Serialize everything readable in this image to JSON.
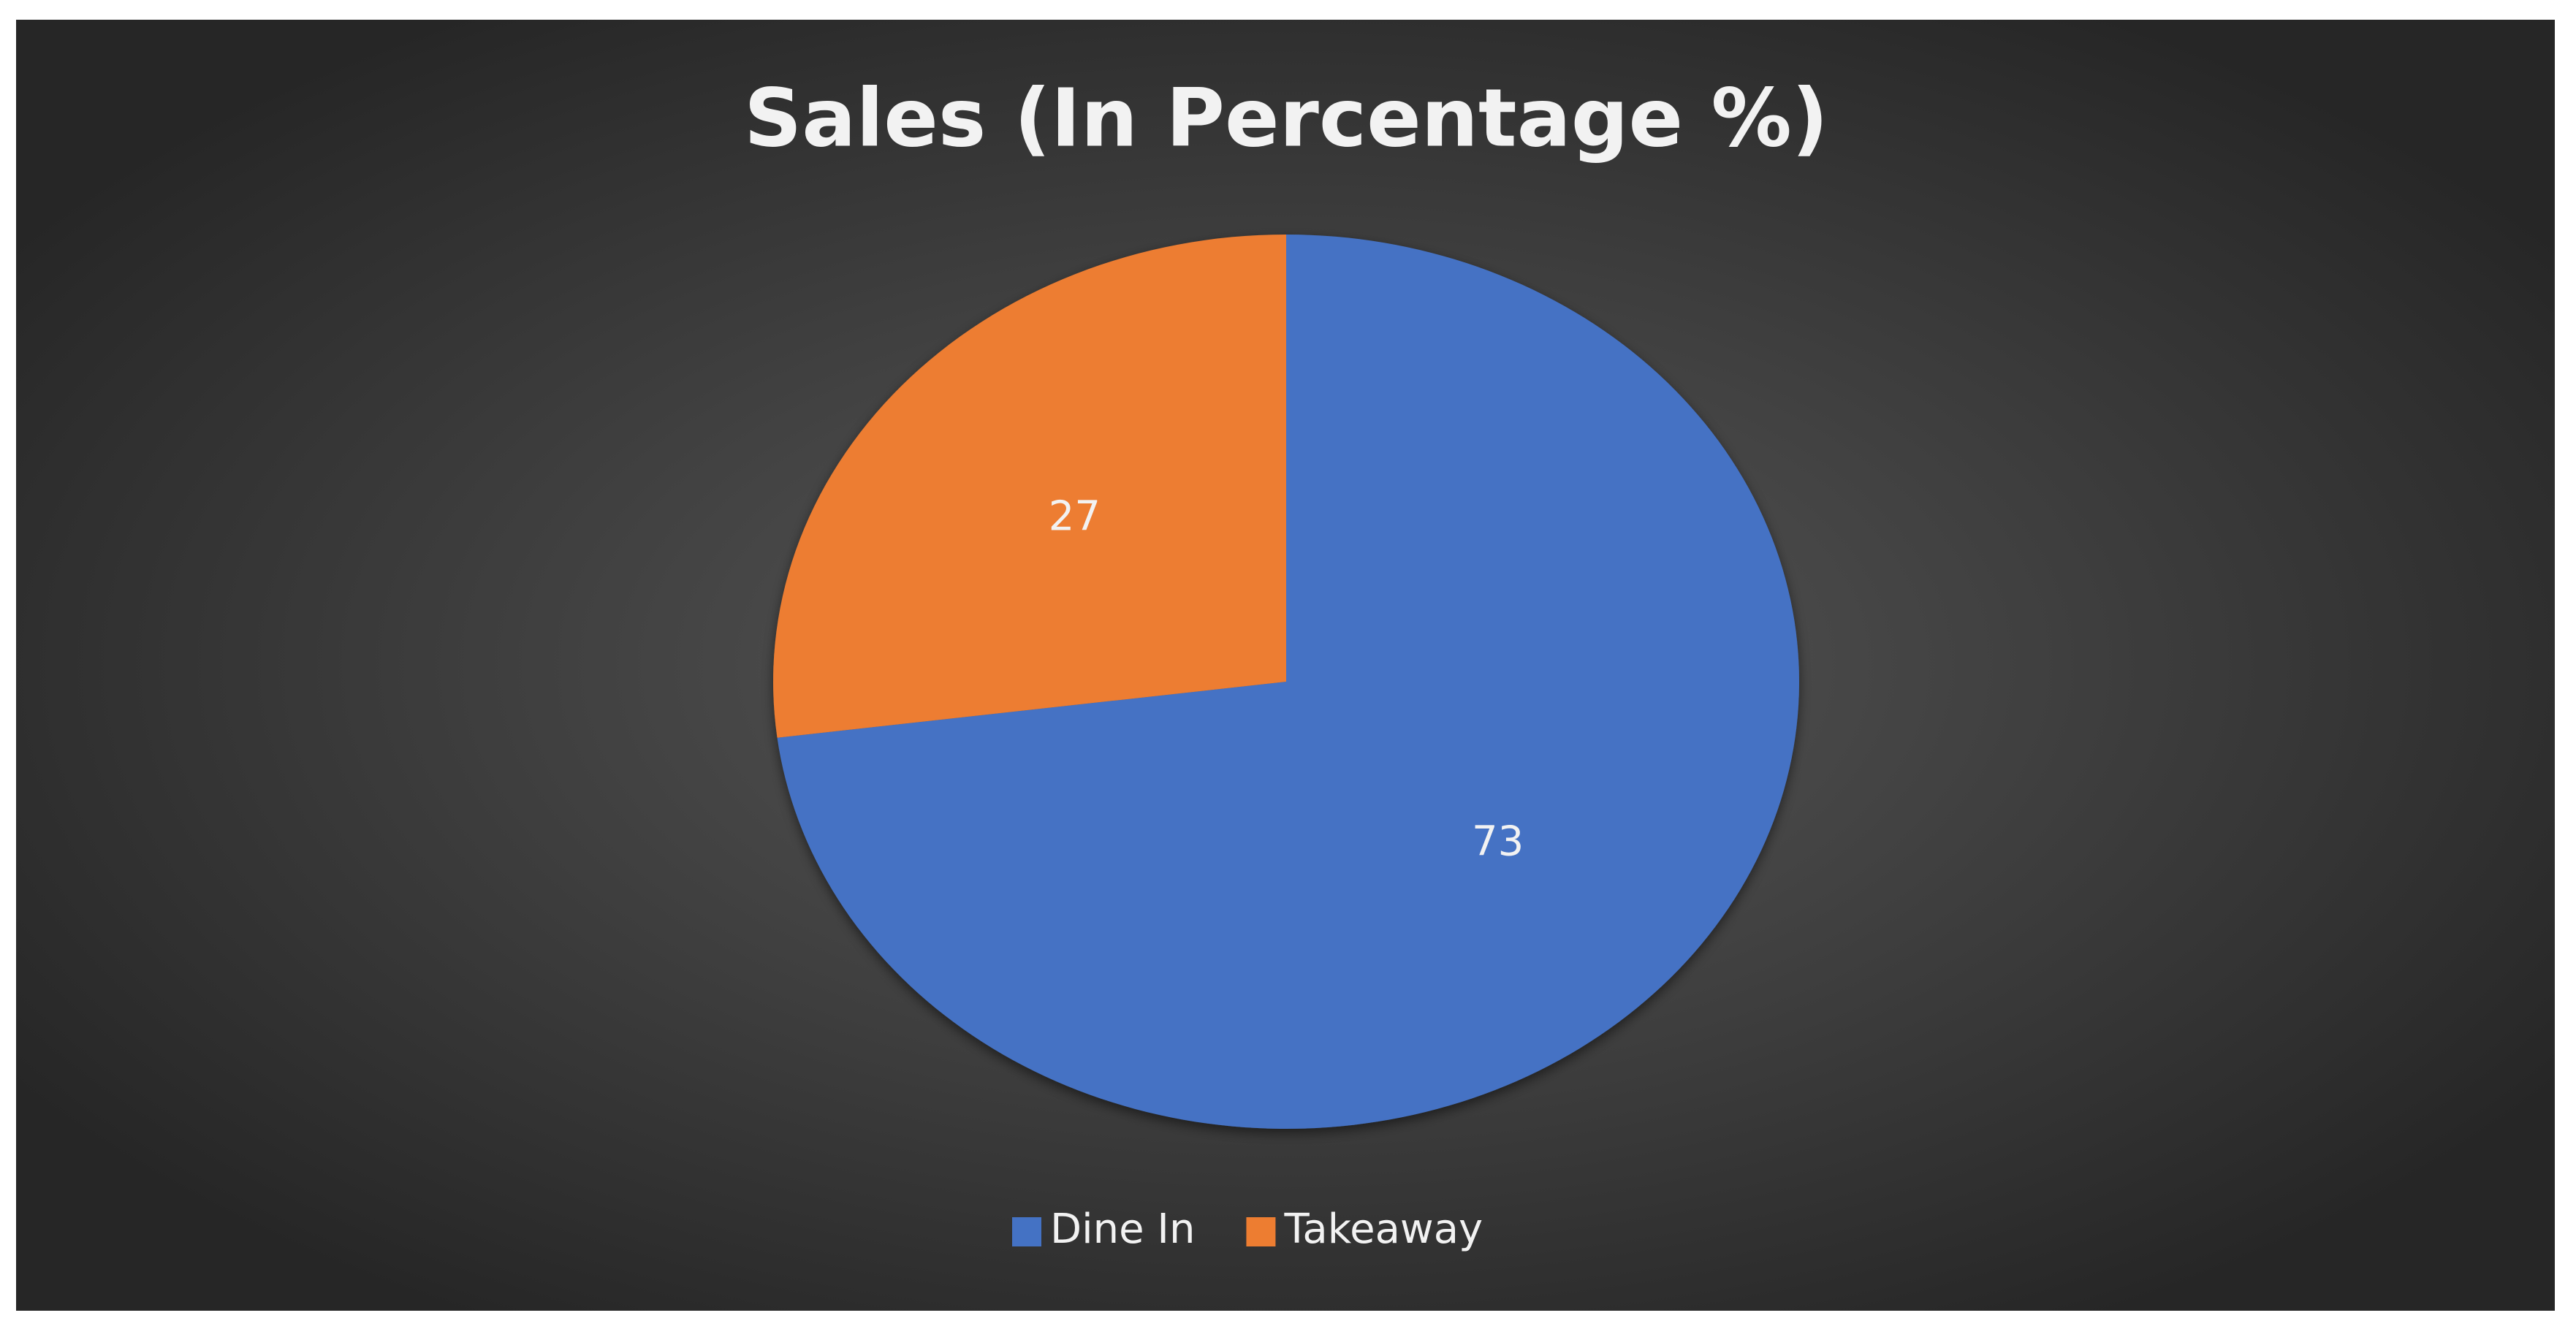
{
  "chart_data": {
    "type": "pie",
    "title": "Sales (In Percentage %)",
    "categories": [
      "Dine In",
      "Takeaway"
    ],
    "values": [
      73,
      27
    ],
    "colors": [
      "#4472c4",
      "#ed7d31"
    ],
    "legend": "bottom"
  }
}
